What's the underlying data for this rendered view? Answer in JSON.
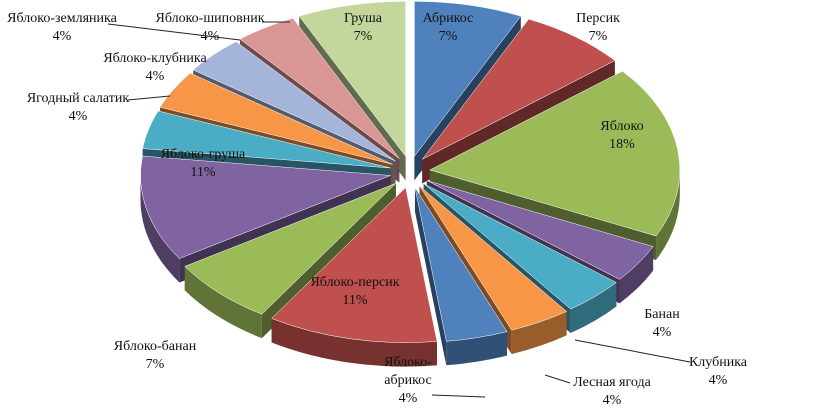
{
  "chart_data": {
    "type": "pie",
    "title": "",
    "style": "exploded-3d",
    "slices": [
      {
        "name": "Абрикос",
        "label": "7%",
        "value": 7,
        "color": "#4f81bd"
      },
      {
        "name": "Персик",
        "label": "7%",
        "value": 7,
        "color": "#c0504d"
      },
      {
        "name": "Яблоко",
        "label": "18%",
        "value": 18,
        "color": "#9bbb59"
      },
      {
        "name": "Банан",
        "label": "4%",
        "value": 4,
        "color": "#8064a2"
      },
      {
        "name": "Клубника",
        "label": "4%",
        "value": 4,
        "color": "#4bacc6"
      },
      {
        "name": "Лесная ягода",
        "label": "4%",
        "value": 4,
        "color": "#f79646"
      },
      {
        "name": "Яблоко-абрикос",
        "label": "4%",
        "value": 4,
        "color": "#4f81bd"
      },
      {
        "name": "Яблоко-персик",
        "label": "11%",
        "value": 11,
        "color": "#c0504d"
      },
      {
        "name": "Яблоко-банан",
        "label": "7%",
        "value": 7,
        "color": "#9bbb59"
      },
      {
        "name": "Яблоко-груша",
        "label": "11%",
        "value": 11,
        "color": "#8064a2"
      },
      {
        "name": "Ягодный салатик",
        "label": "4%",
        "value": 4,
        "color": "#4bacc6"
      },
      {
        "name": "Яблоко-клубника",
        "label": "4%",
        "value": 4,
        "color": "#f79646"
      },
      {
        "name": "Яблоко-шиповник",
        "label": "4%",
        "value": 4,
        "color": "#a5b5d9"
      },
      {
        "name": "Яблоко-земляника",
        "label": "4%",
        "value": 4,
        "color": "#d99694"
      },
      {
        "name": "Груша",
        "label": "7%",
        "value": 7,
        "color": "#c3d69b"
      }
    ]
  }
}
